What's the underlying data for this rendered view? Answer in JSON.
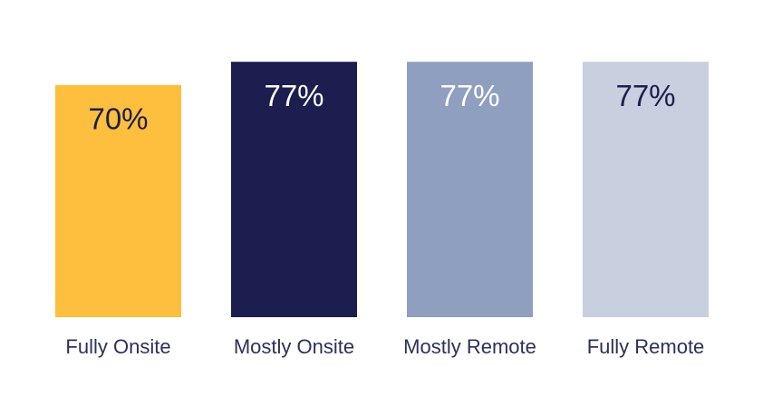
{
  "chart_data": {
    "type": "bar",
    "categories": [
      "Fully Onsite",
      "Mostly Onsite",
      "Mostly Remote",
      "Fully Remote"
    ],
    "values": [
      70,
      77,
      77,
      77
    ],
    "value_labels": [
      "70%",
      "77%",
      "77%",
      "77%"
    ],
    "colors": [
      "#fdbf3d",
      "#1b1e4e",
      "#8f9fbf",
      "#c8cfde"
    ],
    "value_label_colors": [
      "#1b1e4e",
      "#ffffff",
      "#ffffff",
      "#1b1e4e"
    ]
  }
}
